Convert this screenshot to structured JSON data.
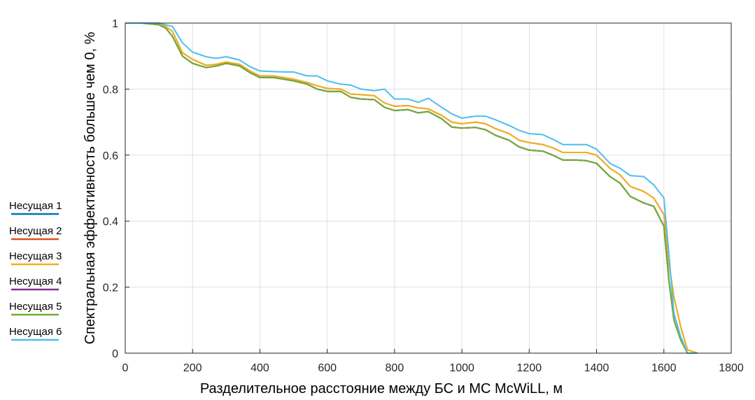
{
  "chart_data": {
    "type": "line",
    "title": "",
    "xlabel": "Разделительное расстояние между  БС и МС McWiLL, м",
    "ylabel": "Спектральная эффективность больше  чем 0, %",
    "xlim": [
      0,
      1800
    ],
    "ylim": [
      0,
      1
    ],
    "xticks": [
      0,
      200,
      400,
      600,
      800,
      1000,
      1200,
      1400,
      1600,
      1800
    ],
    "yticks": [
      0,
      0.2,
      0.4,
      0.6,
      0.8,
      1
    ],
    "xtick_labels": [
      "0",
      "200",
      "400",
      "600",
      "800",
      "1000",
      "1200",
      "1400",
      "1600",
      "1800"
    ],
    "ytick_labels": [
      "0",
      "0.2",
      "0.4",
      "0.6",
      "0.8",
      "1"
    ],
    "grid": true,
    "legend_position": "left, outside plot",
    "x": [
      0,
      50,
      100,
      120,
      140,
      170,
      200,
      240,
      270,
      300,
      340,
      370,
      400,
      440,
      470,
      500,
      540,
      570,
      600,
      640,
      670,
      700,
      740,
      770,
      800,
      840,
      870,
      900,
      940,
      970,
      1000,
      1040,
      1070,
      1100,
      1140,
      1170,
      1200,
      1240,
      1270,
      1300,
      1340,
      1370,
      1400,
      1440,
      1470,
      1500,
      1540,
      1570,
      1600,
      1615,
      1630,
      1650,
      1670,
      1700
    ],
    "series": [
      {
        "name": "Несущая 1",
        "color": "#0072BD",
        "values": [
          1,
          1,
          0.995,
          0.985,
          0.96,
          0.9,
          0.878,
          0.865,
          0.87,
          0.878,
          0.87,
          0.85,
          0.835,
          0.835,
          0.83,
          0.825,
          0.815,
          0.8,
          0.793,
          0.793,
          0.775,
          0.77,
          0.768,
          0.745,
          0.735,
          0.738,
          0.728,
          0.732,
          0.71,
          0.685,
          0.682,
          0.684,
          0.677,
          0.66,
          0.645,
          0.625,
          0.615,
          0.612,
          0.6,
          0.585,
          0.585,
          0.583,
          0.575,
          0.535,
          0.515,
          0.475,
          0.455,
          0.445,
          0.385,
          0.22,
          0.1,
          0.04,
          0,
          0
        ]
      },
      {
        "name": "Несущая 2",
        "color": "#D95319",
        "values": [
          1,
          1,
          0.998,
          0.99,
          0.975,
          0.91,
          0.89,
          0.872,
          0.875,
          0.882,
          0.875,
          0.855,
          0.84,
          0.84,
          0.835,
          0.83,
          0.82,
          0.81,
          0.802,
          0.8,
          0.785,
          0.783,
          0.78,
          0.758,
          0.748,
          0.75,
          0.743,
          0.74,
          0.72,
          0.7,
          0.695,
          0.7,
          0.695,
          0.68,
          0.665,
          0.645,
          0.638,
          0.632,
          0.622,
          0.608,
          0.608,
          0.608,
          0.6,
          0.56,
          0.54,
          0.505,
          0.49,
          0.47,
          0.42,
          0.27,
          0.17,
          0.08,
          0.01,
          0
        ]
      },
      {
        "name": "Несущая 3",
        "color": "#EDB120",
        "values": [
          1,
          1,
          0.998,
          0.99,
          0.975,
          0.91,
          0.89,
          0.872,
          0.875,
          0.882,
          0.875,
          0.855,
          0.84,
          0.84,
          0.835,
          0.83,
          0.82,
          0.81,
          0.802,
          0.8,
          0.785,
          0.783,
          0.78,
          0.758,
          0.748,
          0.75,
          0.743,
          0.74,
          0.72,
          0.7,
          0.695,
          0.7,
          0.695,
          0.68,
          0.665,
          0.645,
          0.638,
          0.632,
          0.622,
          0.608,
          0.608,
          0.608,
          0.6,
          0.56,
          0.54,
          0.505,
          0.49,
          0.47,
          0.42,
          0.27,
          0.17,
          0.08,
          0.01,
          0
        ]
      },
      {
        "name": "Несущая 4",
        "color": "#7E2F8E",
        "values": [
          1,
          1,
          0.995,
          0.985,
          0.96,
          0.9,
          0.878,
          0.865,
          0.87,
          0.878,
          0.87,
          0.85,
          0.835,
          0.835,
          0.83,
          0.825,
          0.815,
          0.8,
          0.793,
          0.793,
          0.775,
          0.77,
          0.768,
          0.745,
          0.735,
          0.738,
          0.728,
          0.732,
          0.71,
          0.685,
          0.682,
          0.684,
          0.677,
          0.66,
          0.645,
          0.625,
          0.615,
          0.612,
          0.6,
          0.585,
          0.585,
          0.583,
          0.575,
          0.535,
          0.515,
          0.475,
          0.455,
          0.445,
          0.385,
          0.22,
          0.1,
          0.04,
          0,
          0
        ]
      },
      {
        "name": "Несущая 5",
        "color": "#77AC30",
        "values": [
          1,
          1,
          0.995,
          0.985,
          0.96,
          0.9,
          0.878,
          0.865,
          0.87,
          0.878,
          0.87,
          0.85,
          0.835,
          0.835,
          0.83,
          0.825,
          0.815,
          0.8,
          0.793,
          0.793,
          0.775,
          0.77,
          0.768,
          0.745,
          0.735,
          0.738,
          0.728,
          0.732,
          0.71,
          0.685,
          0.682,
          0.684,
          0.677,
          0.66,
          0.645,
          0.625,
          0.615,
          0.612,
          0.6,
          0.585,
          0.585,
          0.583,
          0.575,
          0.535,
          0.515,
          0.475,
          0.455,
          0.445,
          0.385,
          0.22,
          0.1,
          0.04,
          0,
          0
        ]
      },
      {
        "name": "Несущая 6",
        "color": "#4DBEEE",
        "values": [
          1,
          1,
          1,
          0.995,
          0.99,
          0.94,
          0.912,
          0.898,
          0.893,
          0.898,
          0.888,
          0.868,
          0.855,
          0.853,
          0.852,
          0.852,
          0.84,
          0.84,
          0.825,
          0.815,
          0.812,
          0.8,
          0.795,
          0.8,
          0.77,
          0.77,
          0.76,
          0.772,
          0.745,
          0.725,
          0.712,
          0.718,
          0.718,
          0.707,
          0.69,
          0.675,
          0.665,
          0.662,
          0.648,
          0.632,
          0.632,
          0.632,
          0.618,
          0.575,
          0.56,
          0.538,
          0.535,
          0.51,
          0.47,
          0.3,
          0.12,
          0.05,
          0,
          0
        ]
      }
    ]
  }
}
